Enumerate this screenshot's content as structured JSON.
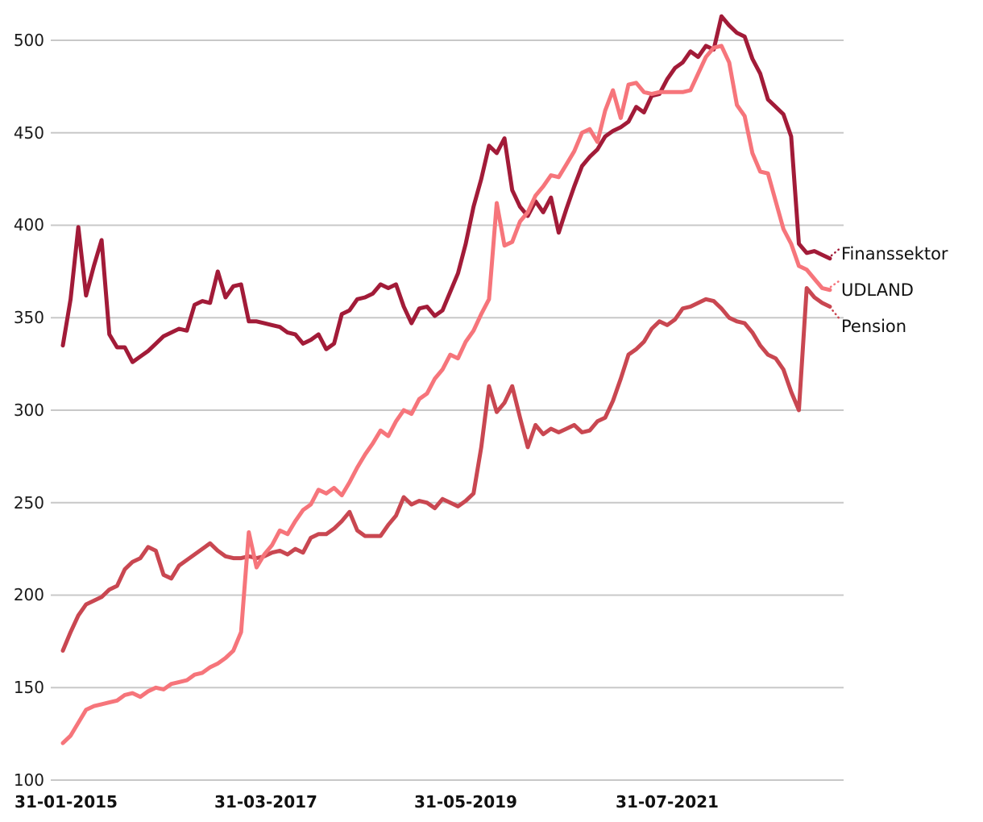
{
  "chart_data": {
    "type": "line",
    "title": "",
    "xlabel": "",
    "ylabel": "",
    "x_tick_labels": [
      "31-01-2015",
      "31-03-2017",
      "31-05-2019",
      "31-07-2021"
    ],
    "y_ticks": [
      100,
      150,
      200,
      250,
      300,
      350,
      400,
      450,
      500
    ],
    "y_tick_labels": [
      "100",
      "150",
      "200",
      "250",
      "300",
      "350",
      "400",
      "450",
      "500"
    ],
    "ylim": [
      100,
      515
    ],
    "grid": "horizontal-only",
    "grid_color": "#c8c8c8",
    "text_color": "#1a1a1a",
    "background_color": "#ffffff",
    "legend_position": "right-of-line-ends-with-dotted-connectors",
    "series": [
      {
        "name": "Finanssektor",
        "color": "#a21b38",
        "values": [
          335,
          360,
          399,
          362,
          378,
          392,
          341,
          334,
          334,
          326,
          329,
          332,
          336,
          340,
          342,
          344,
          343,
          357,
          359,
          358,
          375,
          361,
          367,
          368,
          348,
          348,
          347,
          346,
          345,
          342,
          341,
          336,
          338,
          341,
          333,
          336,
          352,
          354,
          360,
          361,
          363,
          368,
          366,
          368,
          356,
          347,
          355,
          356,
          351,
          354,
          364,
          374,
          390,
          410,
          425,
          443,
          439,
          447,
          419,
          410,
          405,
          413,
          407,
          415,
          396,
          409,
          421,
          432,
          437,
          441,
          448,
          451,
          453,
          456,
          464,
          461,
          470,
          471,
          479,
          485,
          488,
          494,
          491,
          497,
          495,
          513,
          508,
          504,
          502,
          490,
          482,
          468,
          464,
          460,
          448,
          390,
          385,
          386,
          384,
          382
        ]
      },
      {
        "name": "UDLAND",
        "color": "#f6757b",
        "values": [
          120,
          124,
          131,
          138,
          140,
          141,
          142,
          143,
          146,
          147,
          145,
          148,
          150,
          149,
          152,
          153,
          154,
          157,
          158,
          161,
          163,
          166,
          170,
          180,
          234,
          215,
          222,
          227,
          235,
          233,
          240,
          246,
          249,
          257,
          255,
          258,
          254,
          261,
          269,
          276,
          282,
          289,
          286,
          294,
          300,
          298,
          306,
          309,
          317,
          322,
          330,
          328,
          337,
          343,
          352,
          360,
          412,
          389,
          391,
          402,
          407,
          416,
          421,
          427,
          426,
          433,
          440,
          450,
          452,
          445,
          462,
          473,
          458,
          476,
          477,
          472,
          471,
          472,
          472,
          472,
          472,
          473,
          482,
          491,
          496,
          497,
          488,
          465,
          459,
          439,
          429,
          428,
          413,
          398,
          390,
          378,
          376,
          371,
          366,
          365
        ]
      },
      {
        "name": "Pension",
        "color": "#c94751",
        "values": [
          170,
          180,
          189,
          195,
          197,
          199,
          203,
          205,
          214,
          218,
          220,
          226,
          224,
          211,
          209,
          216,
          219,
          222,
          225,
          228,
          224,
          221,
          220,
          220,
          221,
          220,
          221,
          223,
          224,
          222,
          225,
          223,
          231,
          233,
          233,
          236,
          240,
          245,
          235,
          232,
          232,
          232,
          238,
          243,
          253,
          249,
          251,
          250,
          247,
          252,
          250,
          248,
          251,
          255,
          280,
          313,
          299,
          304,
          313,
          296,
          280,
          292,
          287,
          290,
          288,
          290,
          292,
          288,
          289,
          294,
          296,
          305,
          317,
          330,
          333,
          337,
          344,
          348,
          346,
          349,
          355,
          356,
          358,
          360,
          359,
          355,
          350,
          348,
          347,
          342,
          335,
          330,
          328,
          322,
          310,
          300,
          366,
          361,
          358,
          356
        ]
      }
    ]
  }
}
